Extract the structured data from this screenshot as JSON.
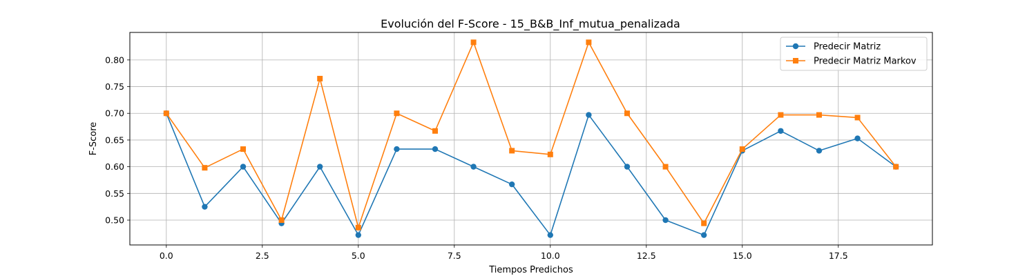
{
  "chart_data": {
    "type": "line",
    "title": "Evolución del F-Score - 15_B&B_Inf_mutua_penalizada",
    "xlabel": "Tiempos Predichos",
    "ylabel": "F-Score",
    "xlim": [
      -0.95,
      19.95
    ],
    "ylim": [
      0.4535,
      0.8515
    ],
    "xticks": [
      0.0,
      2.5,
      5.0,
      7.5,
      10.0,
      12.5,
      15.0,
      17.5
    ],
    "xtick_labels": [
      "0.0",
      "2.5",
      "5.0",
      "7.5",
      "10.0",
      "12.5",
      "15.0",
      "17.5"
    ],
    "yticks": [
      0.5,
      0.55,
      0.6,
      0.65,
      0.7,
      0.75,
      0.8
    ],
    "ytick_labels": [
      "0.50",
      "0.55",
      "0.60",
      "0.65",
      "0.70",
      "0.75",
      "0.80"
    ],
    "grid": true,
    "legend_position": "upper-right",
    "x": [
      0,
      1,
      2,
      3,
      4,
      5,
      6,
      7,
      8,
      9,
      10,
      11,
      12,
      13,
      14,
      15,
      16,
      17,
      18,
      19
    ],
    "series": [
      {
        "name": "Predecir Matriz",
        "color": "#1f77b4",
        "marker": "circle",
        "values": [
          0.7,
          0.525,
          0.6,
          0.494,
          0.6,
          0.472,
          0.633,
          0.633,
          0.6,
          0.567,
          0.472,
          0.697,
          0.6,
          0.5,
          0.472,
          0.63,
          0.667,
          0.63,
          0.653,
          0.6
        ]
      },
      {
        "name": "Predecir Matriz Markov",
        "color": "#ff7f0e",
        "marker": "square",
        "values": [
          0.7,
          0.598,
          0.633,
          0.5,
          0.765,
          0.486,
          0.7,
          0.667,
          0.833,
          0.63,
          0.623,
          0.833,
          0.7,
          0.6,
          0.494,
          0.633,
          0.697,
          0.697,
          0.692,
          0.6
        ]
      }
    ]
  }
}
